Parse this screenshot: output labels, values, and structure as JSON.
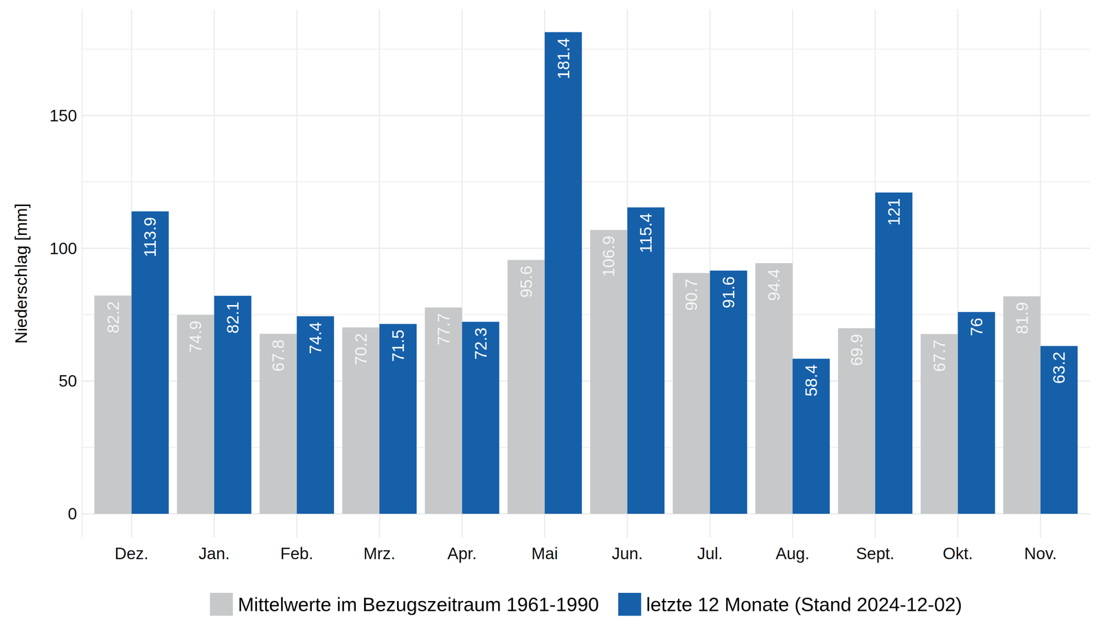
{
  "chart_data": {
    "type": "bar",
    "y_label": "Niederschlag [mm]",
    "categories": [
      "Dez.",
      "Jan.",
      "Feb.",
      "Mrz.",
      "Apr.",
      "Mai",
      "Jun.",
      "Jul.",
      "Aug.",
      "Sept.",
      "Okt.",
      "Nov."
    ],
    "series": [
      {
        "name": "Mittelwerte im Bezugszeitraum 1961-1990",
        "color": "#c6c8c9",
        "values": [
          82.2,
          74.9,
          67.8,
          70.2,
          77.7,
          95.6,
          106.9,
          90.7,
          94.4,
          69.9,
          67.7,
          81.9
        ]
      },
      {
        "name": "letzte 12 Monate (Stand 2024-12-02)",
        "color": "#1660aa",
        "values": [
          113.9,
          82.1,
          74.4,
          71.5,
          72.3,
          181.4,
          115.4,
          91.6,
          58.4,
          121,
          76,
          63.2
        ]
      }
    ],
    "ylim": [
      -9,
      190
    ],
    "yticks": [
      0,
      50,
      100,
      150
    ],
    "grid": true,
    "legend": "bottom",
    "data_labels": true
  }
}
